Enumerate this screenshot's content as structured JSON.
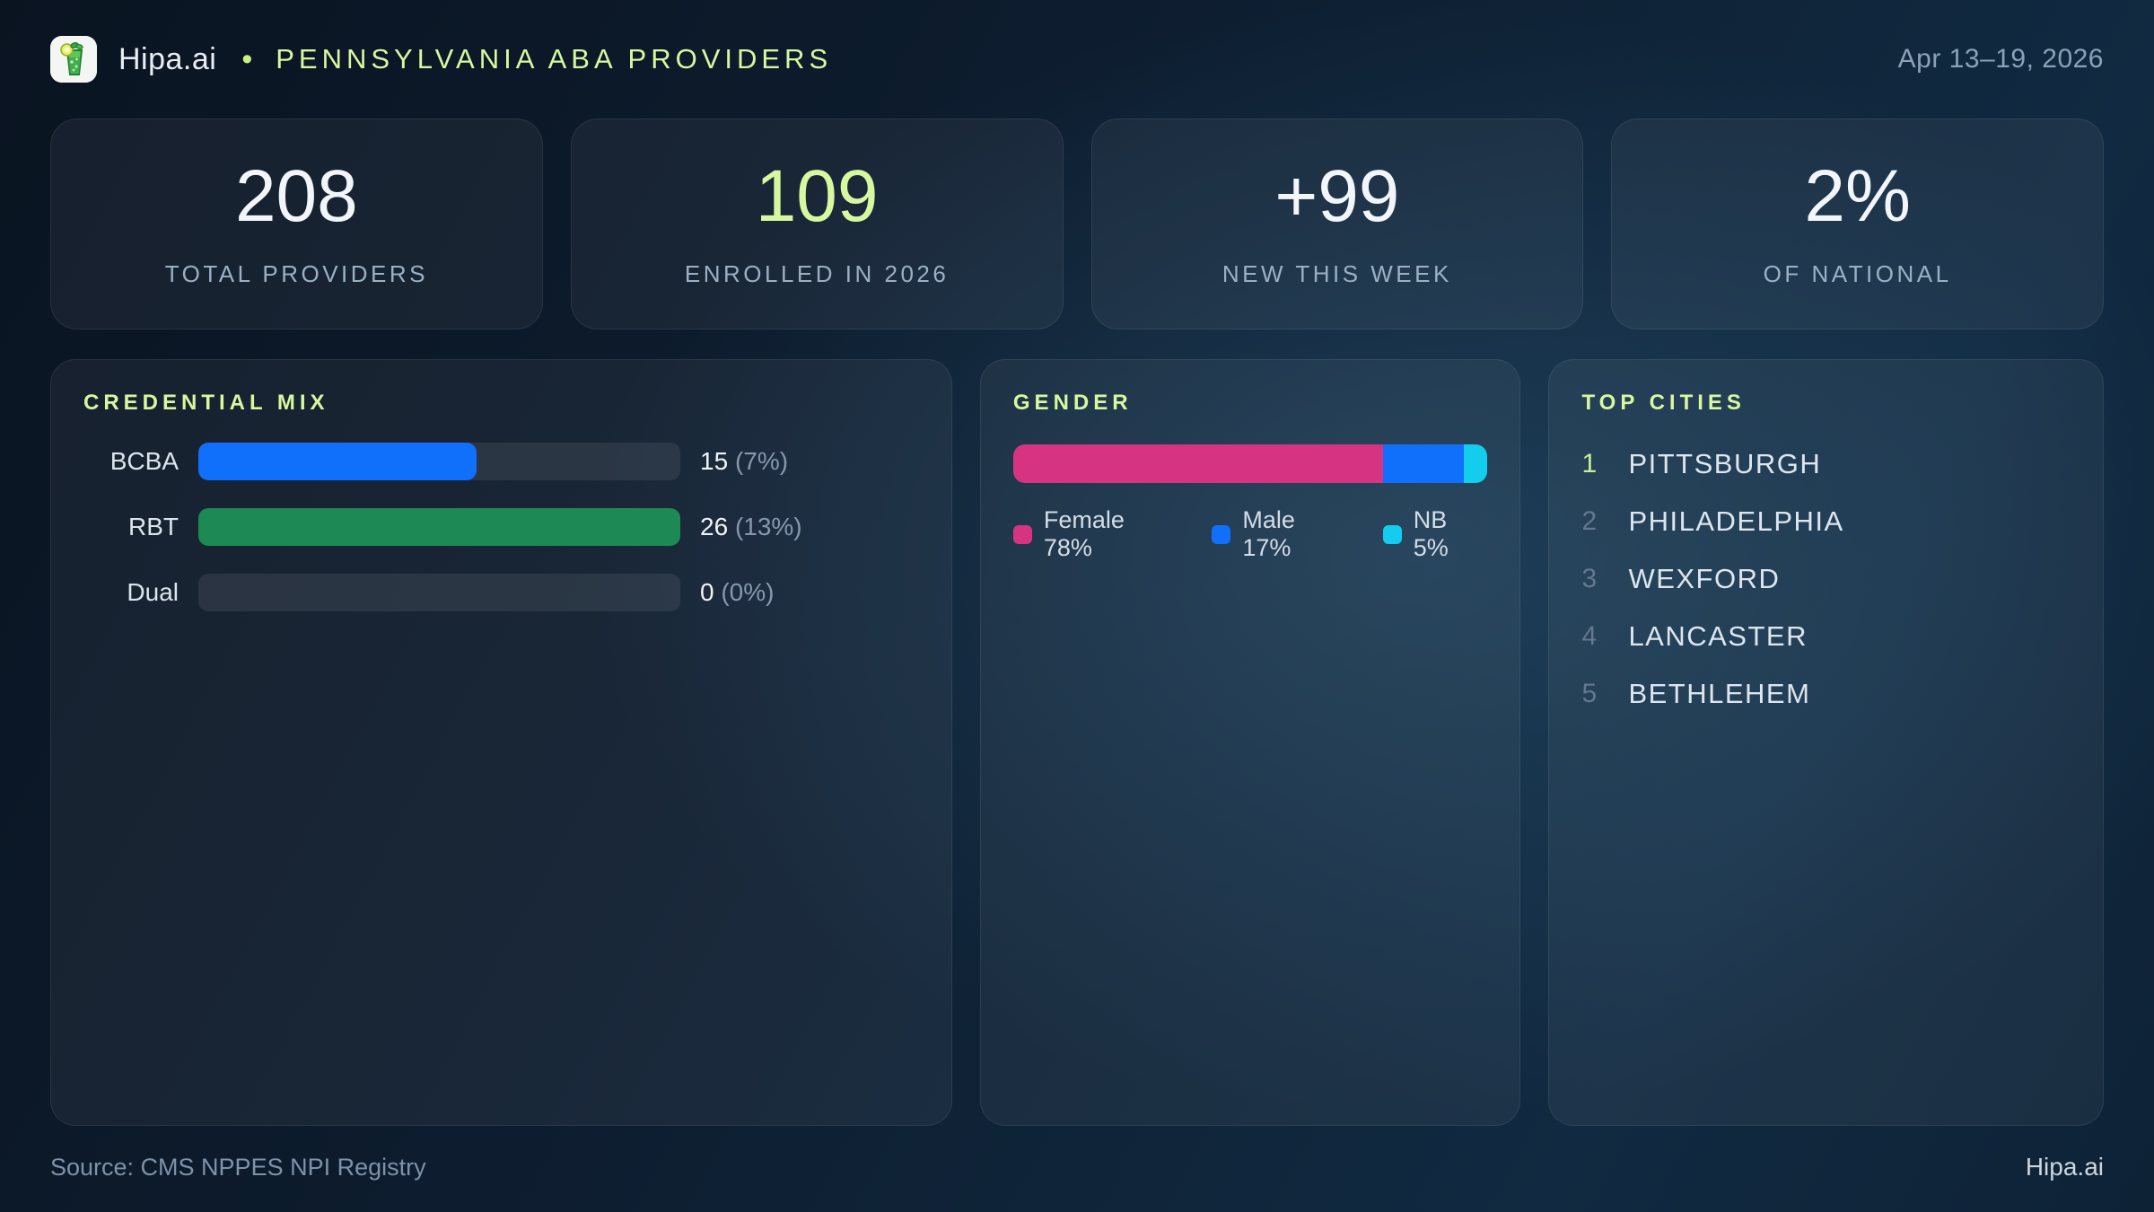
{
  "header": {
    "brand": "Hipa.ai",
    "separator": "•",
    "title": "PENNSYLVANIA ABA PROVIDERS",
    "date_range": "Apr 13–19, 2026"
  },
  "stats": [
    {
      "value": "208",
      "label": "TOTAL PROVIDERS",
      "value_color": "#f2f6fa"
    },
    {
      "value": "109",
      "label": "ENROLLED IN 2026",
      "value_color": "#d7f8a0"
    },
    {
      "value": "+99",
      "label": "NEW THIS WEEK",
      "value_color": "#f2f6fa"
    },
    {
      "value": "2%",
      "label": "OF NATIONAL",
      "value_color": "#f2f6fa"
    }
  ],
  "credential_mix": {
    "title": "CREDENTIAL MIX",
    "rows": [
      {
        "label": "BCBA",
        "value": "15",
        "pct_text": "(7%)",
        "fill_pct": 57.7,
        "color": "#106ffb"
      },
      {
        "label": "RBT",
        "value": "26",
        "pct_text": "(13%)",
        "fill_pct": 100,
        "color": "#1d8a55"
      },
      {
        "label": "Dual",
        "value": "0",
        "pct_text": "(0%)",
        "fill_pct": 0,
        "color": "transparent"
      }
    ]
  },
  "gender": {
    "title": "GENDER",
    "segments": [
      {
        "name": "Female",
        "pct": 78,
        "color": "#d63483",
        "legend_label": "Female 78%"
      },
      {
        "name": "Male",
        "pct": 17,
        "color": "#106ffb",
        "legend_label": "Male 17%"
      },
      {
        "name": "NB",
        "pct": 5,
        "color": "#14cdee",
        "legend_label": "NB 5%"
      }
    ]
  },
  "top_cities": {
    "title": "TOP CITIES",
    "items": [
      {
        "rank": "1",
        "name": "PITTSBURGH"
      },
      {
        "rank": "2",
        "name": "PHILADELPHIA"
      },
      {
        "rank": "3",
        "name": "WEXFORD"
      },
      {
        "rank": "4",
        "name": "LANCASTER"
      },
      {
        "rank": "5",
        "name": "BETHLEHEM"
      }
    ]
  },
  "footer": {
    "source": "Source: CMS NPPES NPI Registry",
    "brand": "Hipa.ai"
  },
  "chart_data": [
    {
      "type": "bar",
      "orientation": "horizontal",
      "title": "CREDENTIAL MIX",
      "categories": [
        "BCBA",
        "RBT",
        "Dual"
      ],
      "values": [
        15,
        26,
        0
      ],
      "percent_of_total": [
        7,
        13,
        0
      ],
      "value_labels": [
        "15 (7%)",
        "26 (13%)",
        "0 (0%)"
      ],
      "note": "bar lengths normalized to max value 26",
      "colors": [
        "#106ffb",
        "#1d8a55",
        "none"
      ],
      "grid": false
    },
    {
      "type": "bar",
      "subtype": "stacked-100",
      "title": "GENDER",
      "categories": [
        "Female",
        "Male",
        "NB"
      ],
      "values": [
        78,
        17,
        5
      ],
      "units": "%",
      "colors": [
        "#d63483",
        "#106ffb",
        "#14cdee"
      ],
      "legend_position": "bottom",
      "grid": false
    },
    {
      "type": "table",
      "title": "TOP CITIES",
      "columns": [
        "rank",
        "city"
      ],
      "rows": [
        [
          1,
          "PITTSBURGH"
        ],
        [
          2,
          "PHILADELPHIA"
        ],
        [
          3,
          "WEXFORD"
        ],
        [
          4,
          "LANCASTER"
        ],
        [
          5,
          "BETHLEHEM"
        ]
      ]
    }
  ]
}
